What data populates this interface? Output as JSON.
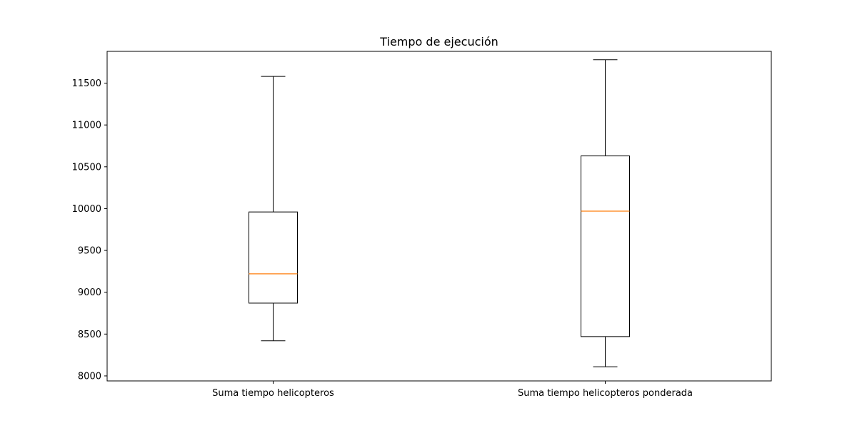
{
  "chart_data": {
    "type": "boxplot",
    "title": "Tiempo de ejecución",
    "xlabel": "",
    "ylabel": "",
    "ylim": [
      7940,
      11880
    ],
    "yticks": [
      8000,
      8500,
      9000,
      9500,
      10000,
      10500,
      11000,
      11500
    ],
    "yticklabels": [
      "8000",
      "8500",
      "9000",
      "9500",
      "10000",
      "10500",
      "11000",
      "11500"
    ],
    "grid": false,
    "legend": "none",
    "categories": [
      "Suma tiempo helicopteros",
      "Suma tiempo helicopteros ponderada"
    ],
    "boxes": [
      {
        "label": "Suma tiempo helicopteros",
        "whisker_low": 8420,
        "q1": 8870,
        "median": 9220,
        "q3": 9960,
        "whisker_high": 11580
      },
      {
        "label": "Suma tiempo helicopteros ponderada",
        "whisker_low": 8110,
        "q1": 8470,
        "median": 9970,
        "q3": 10630,
        "whisker_high": 11780
      }
    ],
    "colors": {
      "box": "#000000",
      "median": "#ff7f0e",
      "axes": "#000000"
    }
  }
}
